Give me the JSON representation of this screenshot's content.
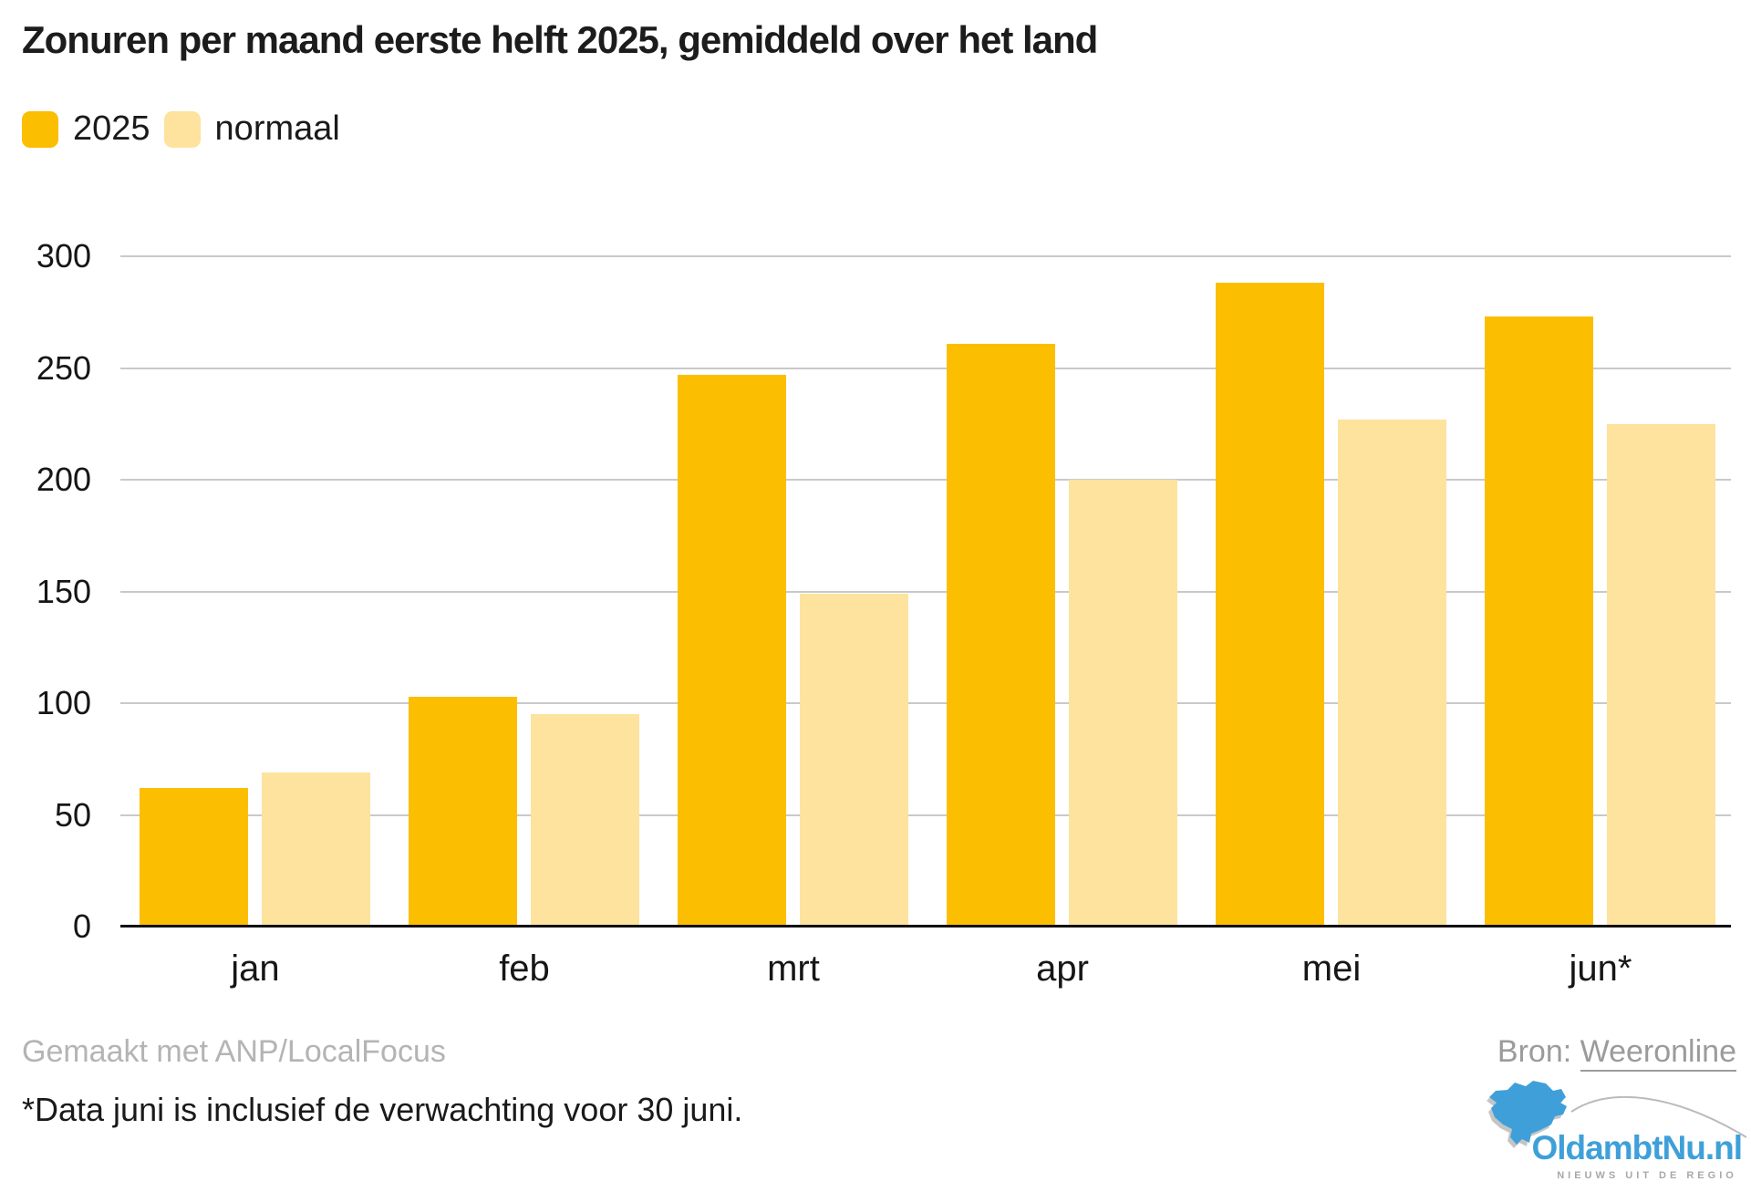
{
  "title": "Zonuren per maand eerste helft 2025, gemiddeld over het land",
  "legend": {
    "items": [
      {
        "label": "2025",
        "color": "#fcbe00"
      },
      {
        "label": "normaal",
        "color": "#fde39e"
      }
    ]
  },
  "chart_data": {
    "type": "bar",
    "categories": [
      "jan",
      "feb",
      "mrt",
      "apr",
      "mei",
      "jun*"
    ],
    "series": [
      {
        "name": "2025",
        "color": "#fcbe00",
        "values": [
          62,
          103,
          247,
          261,
          288,
          273
        ]
      },
      {
        "name": "normaal",
        "color": "#fde39e",
        "values": [
          69,
          95,
          149,
          200,
          227,
          225
        ]
      }
    ],
    "title": "Zonuren per maand eerste helft 2025, gemiddeld over het land",
    "xlabel": "",
    "ylabel": "",
    "ylim": [
      0,
      300
    ],
    "ytick_step": 50,
    "yticks": [
      0,
      50,
      100,
      150,
      200,
      250,
      300
    ],
    "grid": true,
    "gridline_color": "#c9c9c9",
    "axis_color": "#111111",
    "legend_position": "top-left"
  },
  "footer": {
    "credit": "Gemaakt met ANP/LocalFocus",
    "source_label": "Bron:",
    "source_link": "Weeronline",
    "note": "*Data juni is inclusief de verwachting voor 30 juni."
  },
  "logo": {
    "name": "OldambtNu.nl",
    "tagline": "NIEUWS UIT DE REGIO",
    "blue": "#3fa0d9",
    "swoosh_color": "#bbbbbb"
  }
}
